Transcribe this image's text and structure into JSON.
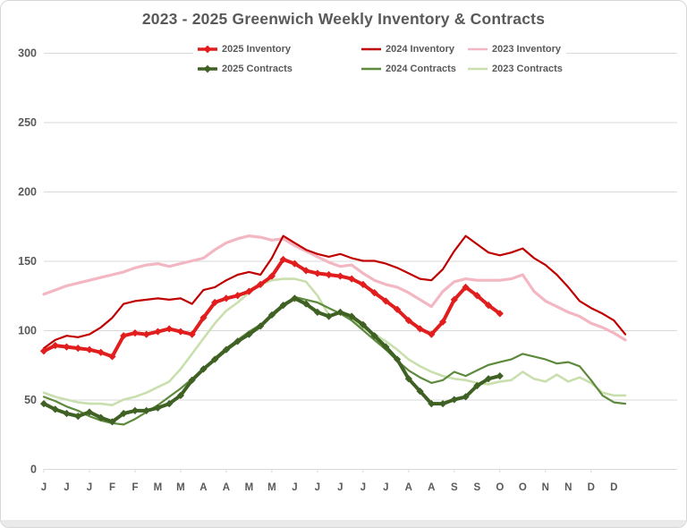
{
  "chart": {
    "title": "2023 - 2025 Greenwich Weekly Inventory & Contracts",
    "title_color": "#595959",
    "grid_color": "#d9d9d9",
    "label_color": "#595959"
  },
  "chart_data": {
    "type": "line",
    "title": "2023 - 2025 Greenwich Weekly Inventory & Contracts",
    "xlabel": "",
    "ylabel": "",
    "ylim": [
      0,
      300
    ],
    "y_ticks": [
      0,
      50,
      100,
      150,
      200,
      250,
      300
    ],
    "grid": true,
    "legend_position": "top-center",
    "weeks": 52,
    "x_tick_labels": [
      "J",
      "J",
      "J",
      "F",
      "F",
      "M",
      "M",
      "A",
      "A",
      "M",
      "M",
      "J",
      "J",
      "J",
      "J",
      "J",
      "A",
      "A",
      "S",
      "S",
      "O",
      "O",
      "N",
      "N",
      "D",
      "D"
    ],
    "series": [
      {
        "name": "2025 Inventory",
        "color": "#e11d1d",
        "width": 4,
        "markers": true,
        "values": [
          85,
          89,
          88,
          87,
          86,
          84,
          81,
          96,
          98,
          97,
          99,
          101,
          99,
          97,
          109,
          120,
          123,
          125,
          128,
          133,
          139,
          151,
          148,
          143,
          141,
          140,
          139,
          137,
          133,
          127,
          121,
          115,
          107,
          101,
          97,
          106,
          122,
          131,
          125,
          118,
          112
        ]
      },
      {
        "name": "2024 Inventory",
        "color": "#c00000",
        "width": 2.2,
        "markers": false,
        "values": [
          87,
          93,
          96,
          95,
          97,
          102,
          109,
          119,
          121,
          122,
          123,
          122,
          123,
          119,
          129,
          131,
          136,
          140,
          142,
          140,
          152,
          168,
          163,
          158,
          155,
          153,
          155,
          152,
          150,
          150,
          148,
          145,
          141,
          137,
          136,
          144,
          157,
          168,
          162,
          156,
          154,
          156,
          159,
          152,
          147,
          140,
          131,
          121,
          116,
          112,
          107,
          97
        ]
      },
      {
        "name": "2023 Inventory",
        "color": "#f3b7c3",
        "width": 3.2,
        "markers": false,
        "values": [
          126,
          129,
          132,
          134,
          136,
          138,
          140,
          142,
          145,
          147,
          148,
          146,
          148,
          150,
          152,
          158,
          163,
          166,
          168,
          167,
          165,
          166,
          161,
          157,
          153,
          149,
          146,
          147,
          141,
          136,
          133,
          131,
          127,
          122,
          117,
          128,
          135,
          137,
          136,
          136,
          136,
          137,
          140,
          128,
          121,
          117,
          113,
          110,
          105,
          102,
          98,
          93
        ]
      },
      {
        "name": "2025 Contracts",
        "color": "#3f6123",
        "width": 4,
        "markers": true,
        "values": [
          47,
          43,
          40,
          38,
          41,
          37,
          34,
          40,
          42,
          42,
          44,
          47,
          53,
          64,
          72,
          79,
          86,
          92,
          97,
          103,
          111,
          118,
          123,
          119,
          113,
          110,
          113,
          110,
          104,
          96,
          88,
          79,
          65,
          56,
          47,
          47,
          50,
          52,
          60,
          65,
          67
        ]
      },
      {
        "name": "2024 Contracts",
        "color": "#5d8a3c",
        "width": 2.2,
        "markers": false,
        "values": [
          52,
          49,
          45,
          42,
          38,
          35,
          33,
          32,
          36,
          41,
          46,
          52,
          58,
          65,
          72,
          80,
          87,
          93,
          99,
          104,
          110,
          117,
          124,
          122,
          120,
          116,
          112,
          107,
          100,
          93,
          86,
          78,
          71,
          66,
          62,
          64,
          70,
          67,
          71,
          75,
          77,
          79,
          83,
          81,
          79,
          76,
          77,
          74,
          64,
          53,
          48,
          47
        ]
      },
      {
        "name": "2023 Contracts",
        "color": "#c9dfae",
        "width": 2.6,
        "markers": false,
        "values": [
          55,
          52,
          50,
          48,
          47,
          47,
          46,
          50,
          52,
          55,
          59,
          63,
          72,
          83,
          94,
          105,
          114,
          120,
          127,
          133,
          136,
          137,
          137,
          135,
          125,
          111,
          112,
          108,
          102,
          97,
          92,
          86,
          79,
          74,
          70,
          67,
          65,
          64,
          62,
          61,
          63,
          64,
          70,
          65,
          63,
          68,
          63,
          66,
          62,
          55,
          53,
          53
        ]
      }
    ]
  }
}
